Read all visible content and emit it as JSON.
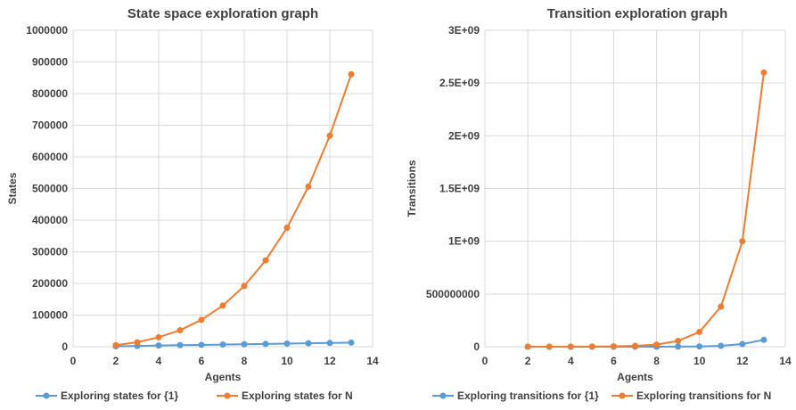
{
  "chart_data": [
    {
      "type": "line",
      "title": "State space exploration graph",
      "xlabel": "Agents",
      "ylabel": "States",
      "xlim": [
        0,
        14
      ],
      "ylim": [
        0,
        1000000
      ],
      "xticks": [
        "0",
        "2",
        "4",
        "6",
        "8",
        "10",
        "12",
        "14"
      ],
      "yticks": [
        "0",
        "100000",
        "200000",
        "300000",
        "400000",
        "500000",
        "600000",
        "700000",
        "800000",
        "900000",
        "1000000"
      ],
      "grid": true,
      "legend": "bottom",
      "x": [
        2,
        3,
        4,
        5,
        6,
        7,
        8,
        9,
        10,
        11,
        12,
        13
      ],
      "series": [
        {
          "name": "Exploring states for {1}",
          "color": "#5b9bd5",
          "values": [
            1200,
            2500,
            3800,
            4800,
            5800,
            6800,
            7800,
            8800,
            9800,
            10800,
            11800,
            13000
          ]
        },
        {
          "name": "Exploring states for N",
          "color": "#ed7d31",
          "values": [
            5000,
            14000,
            30000,
            52000,
            85000,
            130000,
            192000,
            273000,
            376000,
            506000,
            667000,
            861000
          ]
        }
      ]
    },
    {
      "type": "line",
      "title": "Transition exploration graph",
      "xlabel": "Agents",
      "ylabel": "Transitions",
      "xlim": [
        0,
        14
      ],
      "ylim": [
        0,
        3000000000
      ],
      "xticks": [
        "0",
        "2",
        "4",
        "6",
        "8",
        "10",
        "12",
        "14"
      ],
      "yticks": [
        "0",
        "500000000",
        "1E+09",
        "1.5E+09",
        "2E+09",
        "2.5E+09",
        "3E+09"
      ],
      "grid": true,
      "legend": "bottom",
      "x": [
        2,
        3,
        4,
        5,
        6,
        7,
        8,
        9,
        10,
        11,
        12,
        13
      ],
      "series": [
        {
          "name": "Exploring transitions for {1}",
          "color": "#5b9bd5",
          "values": [
            0,
            0,
            0,
            0,
            0,
            0,
            0,
            1000000,
            2500000,
            8000000,
            25000000,
            65000000
          ]
        },
        {
          "name": "Exploring transitions for N",
          "color": "#ed7d31",
          "values": [
            0,
            0,
            0,
            1000000,
            3000000,
            8000000,
            20000000,
            55000000,
            140000000,
            380000000,
            1000000000,
            2600000000
          ]
        }
      ]
    }
  ]
}
